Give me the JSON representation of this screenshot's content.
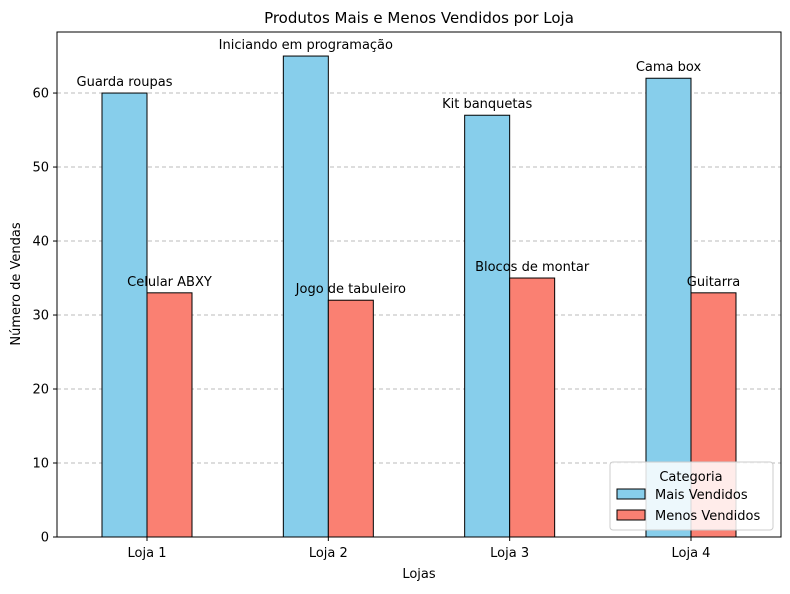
{
  "chart_data": {
    "type": "bar",
    "title": "Produtos Mais e Menos Vendidos por Loja",
    "xlabel": "Lojas",
    "ylabel": "Número de Vendas",
    "categories": [
      "Loja 1",
      "Loja 2",
      "Loja 3",
      "Loja 4"
    ],
    "ylim": [
      0,
      68.25
    ],
    "yticks": [
      0,
      10,
      20,
      30,
      40,
      50,
      60
    ],
    "grid": "horizontal dashed",
    "series": [
      {
        "name": "Mais Vendidos",
        "color": "#87CEEB",
        "values": [
          60,
          65,
          57,
          62
        ],
        "labels": [
          "Guarda roupas",
          "Iniciando em programação",
          "Kit banquetas",
          "Cama box"
        ]
      },
      {
        "name": "Menos Vendidos",
        "color": "#FA8072",
        "values": [
          33,
          32,
          35,
          33
        ],
        "labels": [
          "Celular ABXY",
          "Jogo de tabuleiro",
          "Blocos de montar",
          "Guitarra"
        ]
      }
    ],
    "legend": {
      "title": "Categoria",
      "position": "lower-right"
    }
  }
}
